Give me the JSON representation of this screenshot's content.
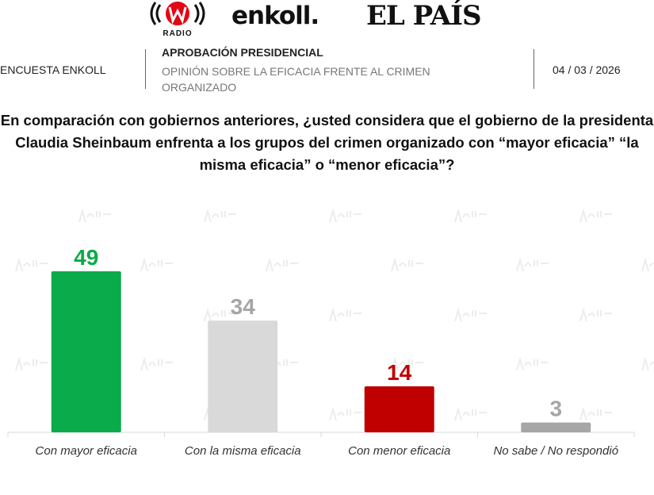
{
  "logos": {
    "wradio": "W RADIO",
    "enkoll": "enkoll.",
    "elpais": "EL PAÍS",
    "watermark": "enkoll."
  },
  "header": {
    "survey": "ENCUESTA ENKOLL",
    "heading": "APROBACIÓN PRESIDENCIAL",
    "subheading": "OPINIÓN SOBRE LA EFICACIA FRENTE AL CRIMEN ORGANIZADO",
    "date": "04 / 03 / 2026"
  },
  "chart_data": {
    "type": "bar",
    "title": "En comparación con gobiernos anteriores, ¿usted considera que el gobierno de la presidenta Claudia Sheinbaum enfrenta a los grupos del crimen organizado con “mayor eficacia” “la misma eficacia” o “menor eficacia”?",
    "categories": [
      "Con mayor eficacia",
      "Con la misma eficacia",
      "Con menor eficacia",
      "No sabe / No respondió"
    ],
    "values": [
      49,
      34,
      14,
      3
    ],
    "colors": [
      "#0aab4a",
      "#d9d9d9",
      "#c00000",
      "#a6a6a6"
    ],
    "label_colors": [
      "#0aab4a",
      "#a6a6a6",
      "#c00000",
      "#a6a6a6"
    ],
    "ylim": [
      0,
      49
    ],
    "grid": false,
    "legend": "none",
    "data_labels": true
  }
}
